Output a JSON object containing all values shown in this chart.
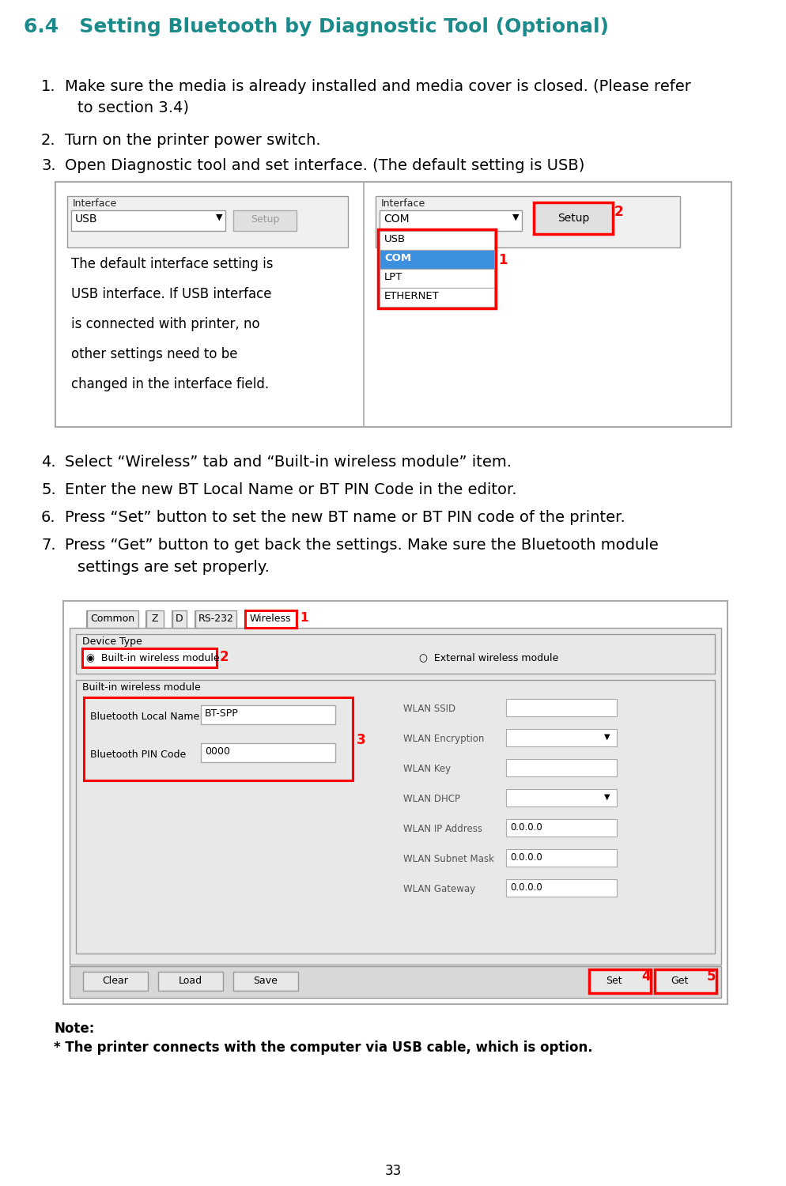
{
  "title": "6.4   Setting Bluetooth by Diagnostic Tool (Optional)",
  "title_color": "#1a8a8a",
  "background_color": "#ffffff",
  "red_color": "#ff0000",
  "blue_highlight": "#3d8fe0",
  "page_number": "33",
  "callout_lines": [
    "The default interface setting is",
    "USB interface. If USB interface",
    "is connected with printer, no",
    "other settings need to be",
    "changed in the interface field."
  ],
  "step1a": "Make sure the media is already installed and media cover is closed. (Please refer",
  "step1b": "to section 3.4)",
  "step2": "Turn on the printer power switch.",
  "step3": "Open Diagnostic tool and set interface. (The default setting is USB)",
  "step4": "Select “Wireless” tab and “Built-in wireless module” item.",
  "step5": "Enter the new BT Local Name or BT PIN Code in the editor.",
  "step6": "Press “Set” button to set the new BT name or BT PIN code of the printer.",
  "step7a": "Press “Get” button to get back the settings. Make sure the Bluetooth module",
  "step7b": "settings are set properly.",
  "note_title": "Note:",
  "note_body": "* The printer connects with the computer via USB cable, which is option.",
  "wlan_labels": [
    "WLAN SSID",
    "WLAN Encryption",
    "WLAN Key",
    "WLAN DHCP",
    "WLAN IP Address",
    "WLAN Subnet Mask",
    "WLAN Gateway"
  ],
  "wlan_values": [
    "",
    "",
    "",
    "",
    "0.0.0.0",
    "0.0.0.0",
    "0.0.0.0"
  ],
  "wlan_has_dropdown": [
    false,
    true,
    false,
    true,
    false,
    false,
    false
  ]
}
